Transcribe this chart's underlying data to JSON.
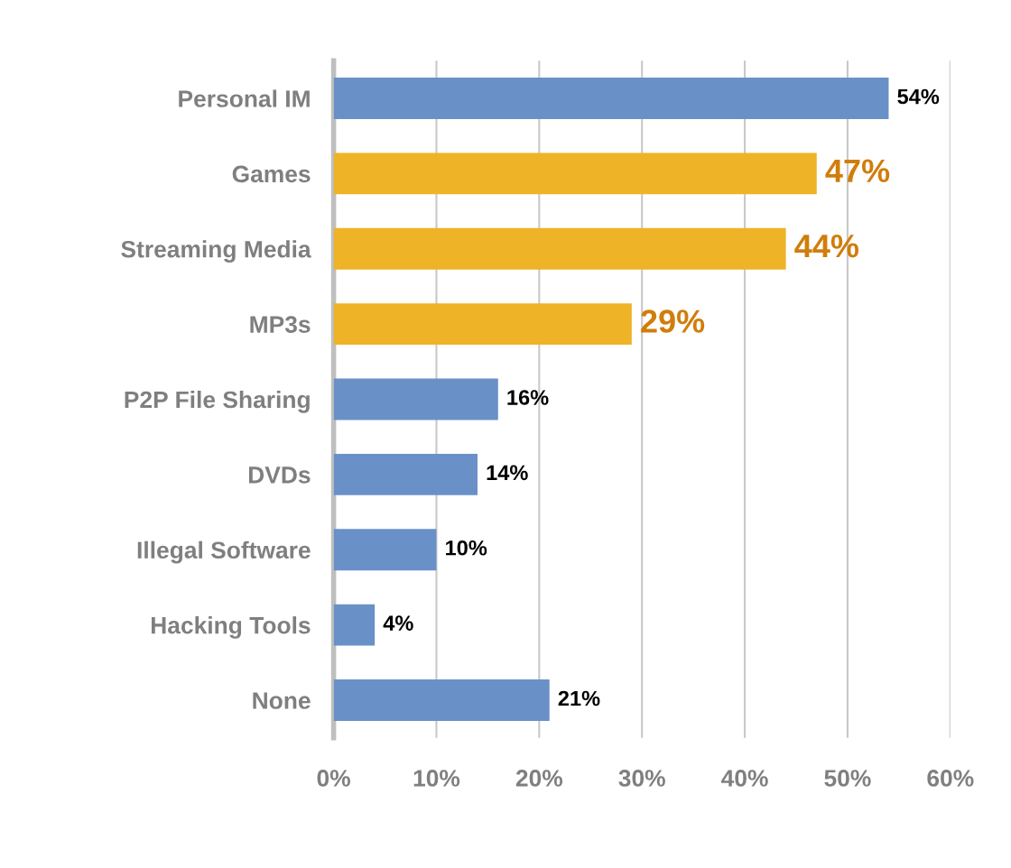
{
  "chart_data": {
    "type": "bar",
    "orientation": "horizontal",
    "categories": [
      "Personal IM",
      "Games",
      "Streaming Media",
      "MP3s",
      "P2P File Sharing",
      "DVDs",
      "Illegal Software",
      "Hacking Tools",
      "None"
    ],
    "values": [
      54,
      47,
      44,
      29,
      16,
      14,
      10,
      4,
      21
    ],
    "colors": [
      "#6a90c8",
      "#eeb326",
      "#eeb326",
      "#eeb326",
      "#6a90c8",
      "#6a90c8",
      "#6a90c8",
      "#6a90c8",
      "#6a90c8"
    ],
    "value_labels": [
      "54%",
      "47%",
      "44%",
      "29%",
      "16%",
      "14%",
      "10%",
      "4%",
      "21%"
    ],
    "xlim": [
      0,
      60
    ],
    "xticks": [
      {
        "value": 0,
        "label": "0%"
      },
      {
        "value": 10,
        "label": "10%"
      },
      {
        "value": 20,
        "label": "20%"
      },
      {
        "value": 30,
        "label": "30%"
      },
      {
        "value": 40,
        "label": "40%"
      },
      {
        "value": 50,
        "label": "50%"
      },
      {
        "value": 60,
        "label": "60%"
      }
    ],
    "grid": "x"
  }
}
